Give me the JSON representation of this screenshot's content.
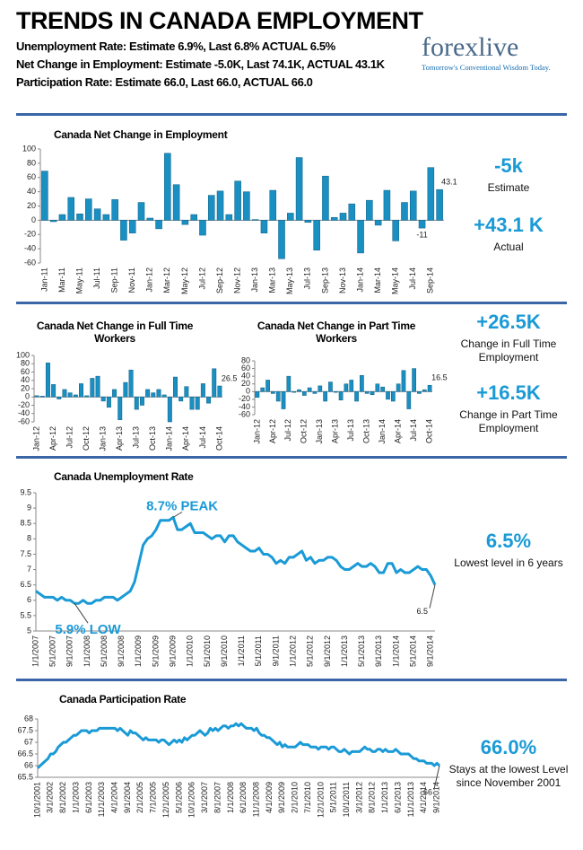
{
  "header": {
    "title": "TRENDS IN CANADA EMPLOYMENT",
    "lines": [
      "Unemployment Rate: Estimate 6.9%, Last 6.8% ACTUAL 6.5%",
      "Net Change in Employment: Estimate -5.0K, Last 74.1K, ACTUAL 43.1K",
      "Participation Rate: Estimate 66.0, Last 66.0, ACTUAL 66.0"
    ]
  },
  "logo": {
    "name": "forexlive",
    "tagline": "Tomorrow's Conventional Wisdom Today."
  },
  "stats": [
    {
      "value": "-5k",
      "label": "Estimate"
    },
    {
      "value": "+43.1 K",
      "label": "Actual"
    },
    {
      "value": "+26.5K",
      "label": "Change in Full Time Employment"
    },
    {
      "value": "+16.5K",
      "label": "Change in Part Time Employment"
    },
    {
      "value": "6.5%",
      "label": "Lowest level in 6 years"
    },
    {
      "value": "66.0%",
      "label": "Stays at the lowest Level since November 2001"
    }
  ],
  "chart_data": [
    {
      "type": "bar",
      "title": "Canada Net Change in Employment",
      "color": "#1a8fc2",
      "categories": [
        "Jan-11",
        null,
        "Mar-11",
        null,
        "May-11",
        null,
        "Jul-11",
        null,
        "Sep-11",
        null,
        "Nov-11",
        null,
        "Jan-12",
        null,
        "Mar-12",
        null,
        "May-12",
        null,
        "Jul-12",
        null,
        "Sep-12",
        null,
        "Nov-12",
        null,
        "Jan-13",
        null,
        "Mar-13",
        null,
        "May-13",
        null,
        "Jul-13",
        null,
        "Sep-13",
        null,
        "Nov-13",
        null,
        "Jan-14",
        null,
        "Mar-14",
        null,
        "May-14",
        null,
        "Jul-14",
        null,
        "Sep-14",
        null
      ],
      "values": [
        69,
        -2,
        8,
        32,
        9,
        30,
        16,
        8,
        29,
        -28,
        -18,
        25,
        3,
        -12,
        94,
        50,
        -6,
        8,
        -21,
        35,
        41,
        8,
        55,
        40,
        1,
        -18,
        42,
        -54,
        10,
        88,
        -3,
        -42,
        62,
        4,
        10,
        23,
        -46,
        28,
        -7,
        42,
        -29,
        25,
        41,
        -11,
        74,
        43.1
      ],
      "value_labels": [
        null,
        null,
        null,
        null,
        null,
        null,
        null,
        null,
        null,
        null,
        null,
        null,
        null,
        null,
        null,
        null,
        null,
        null,
        null,
        null,
        null,
        null,
        null,
        null,
        null,
        null,
        null,
        null,
        null,
        null,
        null,
        null,
        null,
        null,
        null,
        null,
        null,
        null,
        null,
        null,
        null,
        null,
        null,
        "-11",
        null,
        "43.1"
      ],
      "ylim": [
        -60,
        100
      ],
      "yticks": [
        -60,
        -40,
        -20,
        0,
        20,
        40,
        60,
        80,
        100
      ],
      "grid": false
    },
    {
      "type": "bar",
      "title": "Canada Net Change in Full Time Workers",
      "color": "#1a8fc2",
      "categories": [
        "Jan-12",
        null,
        null,
        "Apr-12",
        null,
        null,
        "Jul-12",
        null,
        null,
        "Oct-12",
        null,
        null,
        "Jan-13",
        null,
        null,
        "Apr-13",
        null,
        null,
        "Jul-13",
        null,
        null,
        "Oct-13",
        null,
        null,
        "Jan-14",
        null,
        null,
        "Apr-14",
        null,
        null,
        "Jul-14",
        null,
        null,
        "Oct-14"
      ],
      "values": [
        3,
        2,
        82,
        30,
        -5,
        18,
        10,
        5,
        32,
        3,
        45,
        50,
        -10,
        -25,
        18,
        -55,
        35,
        65,
        -30,
        -20,
        18,
        10,
        18,
        5,
        -60,
        48,
        -10,
        25,
        -30,
        -30,
        32,
        -15,
        68,
        26.5
      ],
      "value_labels": [
        null,
        null,
        null,
        null,
        null,
        null,
        null,
        null,
        null,
        null,
        null,
        null,
        null,
        null,
        null,
        null,
        null,
        null,
        null,
        null,
        null,
        null,
        null,
        null,
        null,
        null,
        null,
        null,
        null,
        null,
        null,
        null,
        null,
        "26.5"
      ],
      "ylim": [
        -60,
        100
      ],
      "yticks": [
        -60,
        -40,
        -20,
        0,
        20,
        40,
        60,
        80,
        100
      ],
      "grid": false
    },
    {
      "type": "bar",
      "title": "Canada Net Change in Part Time Workers",
      "color": "#1a8fc2",
      "categories": [
        "Jan-12",
        null,
        null,
        "Apr-12",
        null,
        null,
        "Jul-12",
        null,
        null,
        "Oct-12",
        null,
        null,
        "Jan-13",
        null,
        null,
        "Apr-13",
        null,
        null,
        "Jul-13",
        null,
        null,
        "Oct-13",
        null,
        null,
        "Jan-14",
        null,
        null,
        "Apr-14",
        null,
        null,
        "Jul-14",
        null,
        null,
        "Oct-14"
      ],
      "values": [
        -15,
        10,
        30,
        -5,
        -25,
        -45,
        40,
        -2,
        5,
        -10,
        10,
        -5,
        15,
        -25,
        25,
        -2,
        -22,
        20,
        30,
        -25,
        42,
        -5,
        -8,
        20,
        12,
        -20,
        -25,
        20,
        55,
        -45,
        60,
        -5,
        5,
        16.5
      ],
      "value_labels": [
        null,
        null,
        null,
        null,
        null,
        null,
        null,
        null,
        null,
        null,
        null,
        null,
        null,
        null,
        null,
        null,
        null,
        null,
        null,
        null,
        null,
        null,
        null,
        null,
        null,
        null,
        null,
        null,
        null,
        null,
        null,
        null,
        null,
        "16.5"
      ],
      "ylim": [
        -60,
        80
      ],
      "yticks": [
        -60,
        -40,
        -20,
        0,
        20,
        40,
        60,
        80
      ],
      "grid": false
    },
    {
      "type": "line",
      "title": "Canada Unemployment Rate",
      "color": "#1a9ad6",
      "annotations": [
        "8.7% PEAK",
        "5.9% LOW"
      ],
      "categories": [
        "1/1/2007",
        null,
        null,
        null,
        "5/1/2007",
        null,
        null,
        null,
        "9/1/2007",
        null,
        null,
        null,
        "1/1/2008",
        null,
        null,
        null,
        "5/1/2008",
        null,
        null,
        null,
        "9/1/2008",
        null,
        null,
        null,
        "1/1/2009",
        null,
        null,
        null,
        "5/1/2009",
        null,
        null,
        null,
        "9/1/2009",
        null,
        null,
        null,
        "1/1/2010",
        null,
        null,
        null,
        "5/1/2010",
        null,
        null,
        null,
        "9/1/2010",
        null,
        null,
        null,
        "1/1/2011",
        null,
        null,
        null,
        "5/1/2011",
        null,
        null,
        null,
        "9/1/2011",
        null,
        null,
        null,
        "1/1/2012",
        null,
        null,
        null,
        "5/1/2012",
        null,
        null,
        null,
        "9/1/2012",
        null,
        null,
        null,
        "1/1/2013",
        null,
        null,
        null,
        "5/1/2013",
        null,
        null,
        null,
        "9/1/2013",
        null,
        null,
        null,
        "1/1/2014",
        null,
        null,
        null,
        "5/1/2014",
        null,
        null,
        null,
        "9/1/2014",
        null
      ],
      "values": [
        6.3,
        6.2,
        6.1,
        6.1,
        6.1,
        6.0,
        6.1,
        6.0,
        6.0,
        5.9,
        5.9,
        6.0,
        5.9,
        5.9,
        6.0,
        6.0,
        6.1,
        6.1,
        6.1,
        6.0,
        6.1,
        6.2,
        6.3,
        6.6,
        7.2,
        7.8,
        8.0,
        8.1,
        8.3,
        8.6,
        8.6,
        8.6,
        8.7,
        8.3,
        8.3,
        8.4,
        8.5,
        8.2,
        8.2,
        8.2,
        8.1,
        8.0,
        8.1,
        8.1,
        7.9,
        8.1,
        8.1,
        7.9,
        7.8,
        7.7,
        7.6,
        7.6,
        7.7,
        7.5,
        7.5,
        7.4,
        7.2,
        7.3,
        7.2,
        7.4,
        7.4,
        7.5,
        7.6,
        7.3,
        7.4,
        7.2,
        7.3,
        7.3,
        7.4,
        7.4,
        7.3,
        7.1,
        7.0,
        7.0,
        7.1,
        7.2,
        7.1,
        7.1,
        7.2,
        7.1,
        6.9,
        6.9,
        7.2,
        7.2,
        6.9,
        7.0,
        6.9,
        6.9,
        7.0,
        7.1,
        7.0,
        7.0,
        6.8,
        6.5
      ],
      "ylim": [
        5,
        9.5
      ],
      "yticks": [
        5,
        5.5,
        6,
        6.5,
        7,
        7.5,
        8,
        8.5,
        9,
        9.5
      ],
      "grid": false
    },
    {
      "type": "line",
      "title": "Canada Participation Rate",
      "color": "#1a9ad6",
      "annotations": [],
      "categories": [
        "10/1/2001",
        null,
        null,
        null,
        null,
        "3/1/2002",
        null,
        null,
        null,
        null,
        "8/1/2002",
        null,
        null,
        null,
        null,
        "1/1/2003",
        null,
        null,
        null,
        null,
        "6/1/2003",
        null,
        null,
        null,
        null,
        "11/1/2003",
        null,
        null,
        null,
        null,
        "4/1/2004",
        null,
        null,
        null,
        null,
        "9/1/2004",
        null,
        null,
        null,
        null,
        "2/1/2005",
        null,
        null,
        null,
        null,
        "7/1/2005",
        null,
        null,
        null,
        null,
        "12/1/2005",
        null,
        null,
        null,
        null,
        "5/1/2006",
        null,
        null,
        null,
        null,
        "10/1/2006",
        null,
        null,
        null,
        null,
        "3/1/2007",
        null,
        null,
        null,
        null,
        "8/1/2007",
        null,
        null,
        null,
        null,
        "1/1/2008",
        null,
        null,
        null,
        null,
        "6/1/2008",
        null,
        null,
        null,
        null,
        "11/1/2008",
        null,
        null,
        null,
        null,
        "4/1/2009",
        null,
        null,
        null,
        null,
        "9/1/2009",
        null,
        null,
        null,
        null,
        "2/1/2010",
        null,
        null,
        null,
        null,
        "7/1/2010",
        null,
        null,
        null,
        null,
        "12/1/2010",
        null,
        null,
        null,
        null,
        "5/1/2011",
        null,
        null,
        null,
        null,
        "10/1/2011",
        null,
        null,
        null,
        null,
        "3/1/2012",
        null,
        null,
        null,
        null,
        "8/1/2012",
        null,
        null,
        null,
        null,
        "1/1/2013",
        null,
        null,
        null,
        null,
        "6/1/2013",
        null,
        null,
        null,
        null,
        "11/1/2013",
        null,
        null,
        null,
        null,
        "4/1/2014",
        null,
        null,
        null,
        null,
        "9/1/2014",
        null
      ],
      "values": [
        65.9,
        66.0,
        66.1,
        66.2,
        66.3,
        66.5,
        66.5,
        66.6,
        66.8,
        66.9,
        67.0,
        67.0,
        67.1,
        67.2,
        67.3,
        67.3,
        67.4,
        67.5,
        67.5,
        67.5,
        67.4,
        67.5,
        67.5,
        67.5,
        67.6,
        67.6,
        67.6,
        67.6,
        67.6,
        67.6,
        67.6,
        67.5,
        67.6,
        67.5,
        67.4,
        67.3,
        67.5,
        67.4,
        67.4,
        67.3,
        67.2,
        67.1,
        67.2,
        67.1,
        67.1,
        67.1,
        67.1,
        67.0,
        67.1,
        67.1,
        67.0,
        66.9,
        67.0,
        67.1,
        67.0,
        67.1,
        67.0,
        67.2,
        67.1,
        67.2,
        67.3,
        67.3,
        67.4,
        67.5,
        67.4,
        67.3,
        67.4,
        67.6,
        67.5,
        67.6,
        67.5,
        67.6,
        67.7,
        67.7,
        67.6,
        67.7,
        67.7,
        67.8,
        67.7,
        67.8,
        67.7,
        67.6,
        67.6,
        67.6,
        67.5,
        67.6,
        67.4,
        67.3,
        67.3,
        67.2,
        67.2,
        67.1,
        67.0,
        66.9,
        67.0,
        66.8,
        66.9,
        66.8,
        66.8,
        66.8,
        66.8,
        66.9,
        67.0,
        66.9,
        66.9,
        66.9,
        66.8,
        66.8,
        66.8,
        66.7,
        66.8,
        66.8,
        66.8,
        66.7,
        66.8,
        66.8,
        66.7,
        66.6,
        66.6,
        66.7,
        66.6,
        66.5,
        66.6,
        66.6,
        66.6,
        66.6,
        66.7,
        66.8,
        66.7,
        66.7,
        66.6,
        66.6,
        66.7,
        66.7,
        66.6,
        66.7,
        66.6,
        66.6,
        66.6,
        66.7,
        66.6,
        66.5,
        66.5,
        66.5,
        66.5,
        66.4,
        66.3,
        66.3,
        66.2,
        66.2,
        66.2,
        66.1,
        66.1,
        66.1,
        66.0,
        66.1,
        66.0
      ],
      "ylim": [
        65.5,
        68
      ],
      "yticks": [
        65.5,
        66,
        66.5,
        67,
        67.5,
        68
      ],
      "grid": false
    }
  ]
}
